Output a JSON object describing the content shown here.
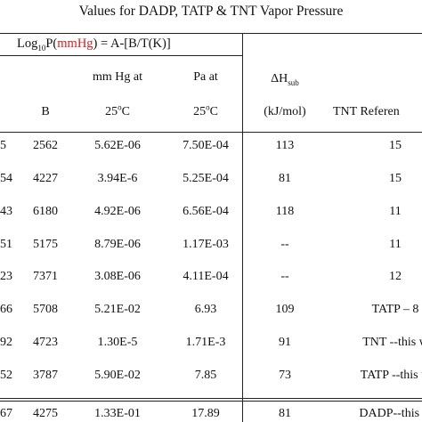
{
  "title": "Values for DADP, TATP & TNT Vapor Pressure",
  "header": {
    "formula": {
      "log_base": "Log",
      "log_sub": "10",
      "p_open": "P(",
      "units_red": "mmHg",
      "rest": ") = A-[B/T(K)]"
    },
    "mmhg_line1": "mm Hg at",
    "pa_line1": "Pa  at",
    "dh_symbol": "ΔH",
    "dh_sub": "sub",
    "b": "B",
    "temp_25": "25",
    "temp_deg": "o",
    "temp_c": "C",
    "kj": "(kJ/mol)",
    "ref": "TNT Referen"
  },
  "rows": [
    {
      "a": "5",
      "b": "2562",
      "mmhg": "5.62E-06",
      "pa": "7.50E-04",
      "dh": "113",
      "ref": "15"
    },
    {
      "a": "54",
      "b": "4227",
      "mmhg": "3.94E-6",
      "pa": "5.25E-04",
      "dh": "81",
      "ref": "15"
    },
    {
      "a": "43",
      "b": "6180",
      "mmhg": "4.92E-06",
      "pa": "6.56E-04",
      "dh": "118",
      "ref": "11"
    },
    {
      "a": "51",
      "b": "5175",
      "mmhg": "8.79E-06",
      "pa": "1.17E-03",
      "dh": "--",
      "ref": "11"
    },
    {
      "a": "23",
      "b": "7371",
      "mmhg": "3.08E-06",
      "pa": "4.11E-04",
      "dh": "--",
      "ref": "12"
    },
    {
      "a": "66",
      "b": "5708",
      "mmhg": "5.21E-02",
      "pa": "6.93",
      "dh": "109",
      "ref": "TATP – 8"
    },
    {
      "a": "92",
      "b": "4723",
      "mmhg": "1.30E-5",
      "pa": "1.71E-3",
      "dh": "91",
      "ref": "TNT --this w"
    },
    {
      "a": "52",
      "b": "3787",
      "mmhg": "5.90E-02",
      "pa": "7.85",
      "dh": "73",
      "ref": "TATP --this w"
    },
    {
      "a": "67",
      "b": "4275",
      "mmhg": "1.33E-01",
      "pa": "17.89",
      "dh": "81",
      "ref": "DADP--this w"
    }
  ]
}
